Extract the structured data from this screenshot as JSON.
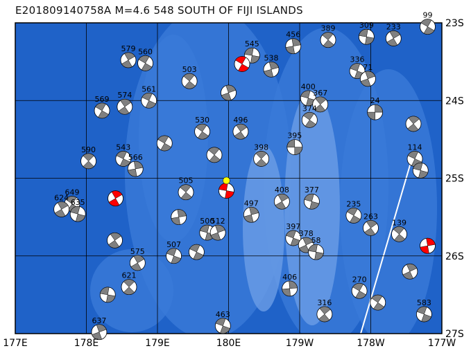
{
  "title": "E201809140758A M=4.6 548 SOUTH OF FIJI ISLANDS",
  "colors": {
    "ocean_deep": "#1f62c8",
    "ocean_mid": "#3a7ad8",
    "ocean_shallow": "#6b9ee6",
    "compressional": "#808080",
    "highlight": "#ff0000",
    "event_marker": "#ffff00"
  },
  "axes": {
    "lon_labels": [
      "177E",
      "178E",
      "179E",
      "180E",
      "179W",
      "178W",
      "177W"
    ],
    "lon_values": [
      177,
      178,
      179,
      180,
      181,
      182,
      183
    ],
    "lat_labels": [
      "23S",
      "24S",
      "25S",
      "26S",
      "27S"
    ],
    "lat_values": [
      23,
      24,
      25,
      26,
      27
    ]
  },
  "event_marker": {
    "lon": 179.97,
    "lat": 25.03
  },
  "mechanisms": [
    {
      "label": "99",
      "lon": 182.8,
      "lat": 23.05,
      "rot": 30
    },
    {
      "label": "233",
      "lon": 182.32,
      "lat": 23.2,
      "rot": 60
    },
    {
      "label": "309",
      "lon": 181.94,
      "lat": 23.18,
      "rot": 10
    },
    {
      "label": "456",
      "lon": 180.91,
      "lat": 23.3,
      "rot": 80
    },
    {
      "label": "389",
      "lon": 181.4,
      "lat": 23.22,
      "rot": 40
    },
    {
      "label": "336",
      "lon": 181.81,
      "lat": 23.62,
      "rot": 20
    },
    {
      "label": "71",
      "lon": 181.96,
      "lat": 23.72,
      "rot": 70
    },
    {
      "label": "400",
      "lon": 181.12,
      "lat": 23.97,
      "rot": 15
    },
    {
      "label": "367",
      "lon": 181.29,
      "lat": 24.05,
      "rot": 50
    },
    {
      "label": "24",
      "lon": 182.06,
      "lat": 24.15,
      "rot": 90
    },
    {
      "label": "374",
      "lon": 181.14,
      "lat": 24.25,
      "rot": 35
    },
    {
      "label": "395",
      "lon": 180.93,
      "lat": 24.6,
      "rot": 0
    },
    {
      "label": "398",
      "lon": 180.46,
      "lat": 24.75,
      "rot": 45
    },
    {
      "label": "114",
      "lon": 182.62,
      "lat": 24.75,
      "rot": 25
    },
    {
      "label": "408",
      "lon": 180.75,
      "lat": 25.3,
      "rot": 60
    },
    {
      "label": "377",
      "lon": 181.17,
      "lat": 25.3,
      "rot": 15
    },
    {
      "label": "497",
      "lon": 180.32,
      "lat": 25.47,
      "rot": 75
    },
    {
      "label": "235",
      "lon": 181.76,
      "lat": 25.48,
      "rot": 30
    },
    {
      "label": "263",
      "lon": 182.0,
      "lat": 25.64,
      "rot": 55
    },
    {
      "label": "397",
      "lon": 180.91,
      "lat": 25.77,
      "rot": 20
    },
    {
      "label": "378",
      "lon": 181.09,
      "lat": 25.86,
      "rot": 65
    },
    {
      "label": "58",
      "lon": 181.23,
      "lat": 25.95,
      "rot": 10
    },
    {
      "label": "139",
      "lon": 182.4,
      "lat": 25.72,
      "rot": 40
    },
    {
      "label": "406",
      "lon": 180.86,
      "lat": 26.42,
      "rot": 85
    },
    {
      "label": "270",
      "lon": 181.84,
      "lat": 26.45,
      "rot": 30
    },
    {
      "label": "316",
      "lon": 181.35,
      "lat": 26.75,
      "rot": 50
    },
    {
      "label": "463",
      "lon": 179.92,
      "lat": 26.9,
      "rot": 20
    },
    {
      "label": "637",
      "lon": 178.18,
      "lat": 26.98,
      "rot": 70
    },
    {
      "label": "649",
      "lon": 177.8,
      "lat": 25.33,
      "rot": 35
    },
    {
      "label": "624",
      "lon": 177.65,
      "lat": 25.4,
      "rot": 60
    },
    {
      "label": "635",
      "lon": 177.88,
      "lat": 25.46,
      "rot": 15
    },
    {
      "label": "590",
      "lon": 178.03,
      "lat": 24.78,
      "rot": 45
    },
    {
      "label": "543",
      "lon": 178.52,
      "lat": 24.75,
      "rot": 25
    },
    {
      "label": "566",
      "lon": 178.69,
      "lat": 24.88,
      "rot": 80
    },
    {
      "label": "569",
      "lon": 178.22,
      "lat": 24.13,
      "rot": 30
    },
    {
      "label": "574",
      "lon": 178.54,
      "lat": 24.08,
      "rot": 55
    },
    {
      "label": "507",
      "lon": 179.23,
      "lat": 26.0,
      "rot": 20
    },
    {
      "label": "575",
      "lon": 178.72,
      "lat": 26.09,
      "rot": 60
    },
    {
      "label": "505",
      "lon": 179.4,
      "lat": 25.18,
      "rot": 40
    },
    {
      "label": "500",
      "lon": 179.7,
      "lat": 25.7,
      "rot": 15
    },
    {
      "label": "512",
      "lon": 179.85,
      "lat": 25.7,
      "rot": 70
    },
    {
      "label": "530",
      "lon": 179.63,
      "lat": 24.4,
      "rot": 35
    },
    {
      "label": "496",
      "lon": 180.17,
      "lat": 24.4,
      "rot": 55
    },
    {
      "label": "545",
      "lon": 180.33,
      "lat": 23.42,
      "rot": 10
    },
    {
      "label": "538",
      "lon": 180.6,
      "lat": 23.6,
      "rot": 75
    },
    {
      "label": "503",
      "lon": 179.45,
      "lat": 23.75,
      "rot": 40
    },
    {
      "label": "561",
      "lon": 178.88,
      "lat": 24.0,
      "rot": 25
    },
    {
      "label": "579",
      "lon": 178.59,
      "lat": 23.48,
      "rot": 60
    },
    {
      "label": "560",
      "lon": 178.83,
      "lat": 23.52,
      "rot": 30
    },
    {
      "label": "621",
      "lon": 178.6,
      "lat": 26.4,
      "rot": 45
    },
    {
      "label": "583",
      "lon": 182.75,
      "lat": 26.75,
      "rot": 20
    },
    {
      "label": "",
      "lon": 182.6,
      "lat": 24.3,
      "rot": 50
    },
    {
      "label": "",
      "lon": 182.7,
      "lat": 24.9,
      "rot": 15
    },
    {
      "label": "",
      "lon": 182.55,
      "lat": 26.2,
      "rot": 65
    },
    {
      "label": "",
      "lon": 182.1,
      "lat": 26.6,
      "rot": 35
    },
    {
      "label": "",
      "lon": 179.3,
      "lat": 25.5,
      "rot": 80
    },
    {
      "label": "",
      "lon": 179.55,
      "lat": 25.95,
      "rot": 25
    },
    {
      "label": "",
      "lon": 178.4,
      "lat": 25.8,
      "rot": 55
    },
    {
      "label": "",
      "lon": 178.3,
      "lat": 26.5,
      "rot": 10
    },
    {
      "label": "",
      "lon": 179.8,
      "lat": 24.7,
      "rot": 40
    },
    {
      "label": "",
      "lon": 180.0,
      "lat": 23.9,
      "rot": 70
    },
    {
      "label": "",
      "lon": 179.1,
      "lat": 24.55,
      "rot": 30
    }
  ],
  "highlighted": [
    {
      "lon": 180.19,
      "lat": 23.53,
      "rot": 30
    },
    {
      "lon": 178.41,
      "lat": 25.26,
      "rot": 60
    },
    {
      "lon": 179.97,
      "lat": 25.16,
      "rot": 10
    },
    {
      "lon": 182.8,
      "lat": 25.87,
      "rot": 80
    }
  ]
}
